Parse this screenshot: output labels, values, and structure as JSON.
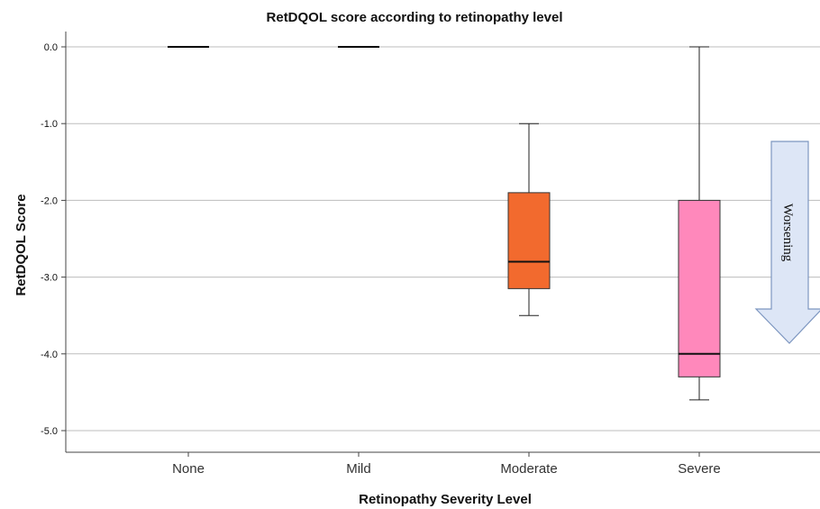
{
  "chart_data": {
    "type": "box",
    "title": "RetDQOL score according to retinopathy level",
    "xlabel": "Retinopathy Severity Level",
    "ylabel": "RetDQOL Score",
    "ylim": [
      -5.3,
      0.2
    ],
    "yticks": [
      0.0,
      -1.0,
      -2.0,
      -3.0,
      -4.0,
      -5.0
    ],
    "ytick_labels": [
      "0.0",
      "-1.0",
      "-2.0",
      "-3.0",
      "-4.0",
      "-5.0"
    ],
    "grid": "horizontal",
    "categories": [
      "None",
      "Mild",
      "Moderate",
      "Severe"
    ],
    "boxes": [
      {
        "category": "None",
        "whisker_low": 0.0,
        "q1": 0.0,
        "median": 0.0,
        "q3": 0.0,
        "whisker_high": 0.0,
        "color": "#000000"
      },
      {
        "category": "Mild",
        "whisker_low": 0.0,
        "q1": 0.0,
        "median": 0.0,
        "q3": 0.0,
        "whisker_high": 0.0,
        "color": "#000000"
      },
      {
        "category": "Moderate",
        "whisker_low": -3.5,
        "q1": -3.15,
        "median": -2.8,
        "q3": -1.9,
        "whisker_high": -1.0,
        "color": "#f26a2e"
      },
      {
        "category": "Severe",
        "whisker_low": -4.6,
        "q1": -4.3,
        "median": -4.0,
        "q3": -2.0,
        "whisker_high": 0.0,
        "color": "#ff88bb"
      }
    ],
    "annotation": {
      "text": "Worsening",
      "fill": "#dde6f6",
      "stroke": "#7d96c0"
    }
  }
}
